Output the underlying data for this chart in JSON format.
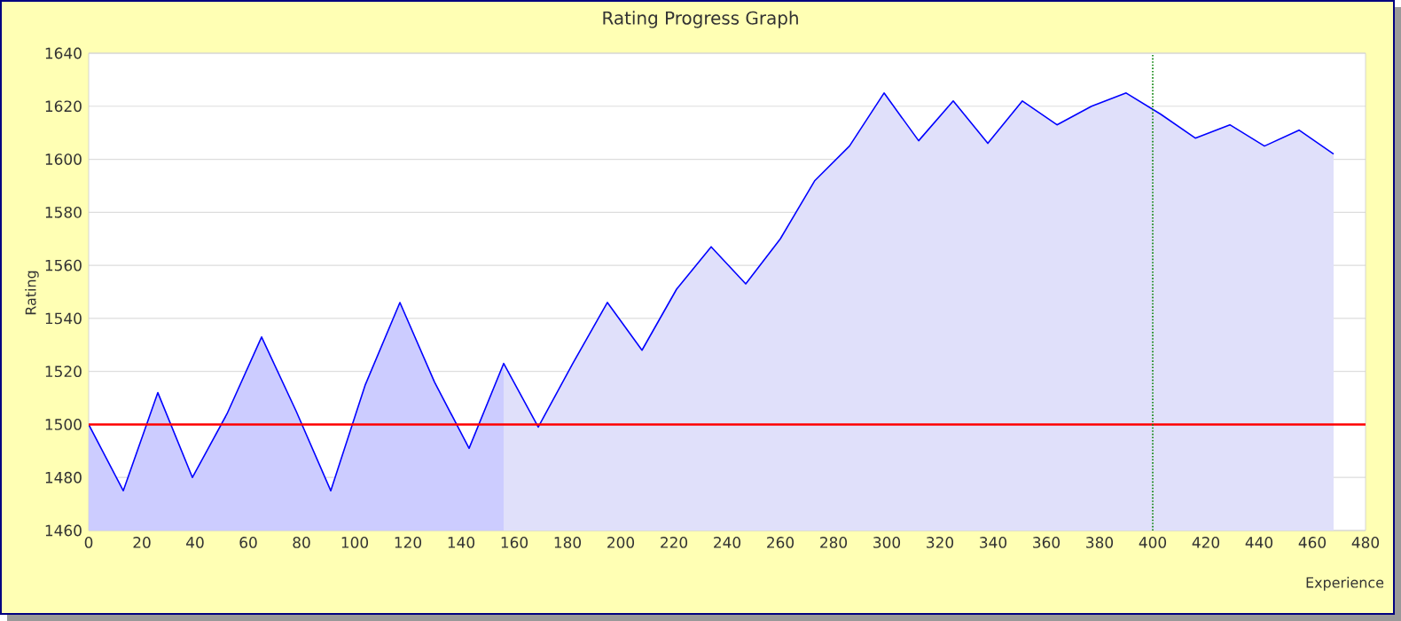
{
  "chart_data": {
    "type": "line",
    "title": "Rating Progress Graph",
    "xlabel": "Experience",
    "ylabel": "Rating",
    "xlim": [
      0,
      480
    ],
    "xticks": [
      0,
      20,
      40,
      60,
      80,
      100,
      120,
      140,
      160,
      180,
      200,
      220,
      240,
      260,
      280,
      300,
      320,
      340,
      360,
      380,
      400,
      420,
      440,
      460,
      480
    ],
    "ylim": [
      1460,
      1640
    ],
    "yticks": [
      1460,
      1480,
      1500,
      1520,
      1540,
      1560,
      1580,
      1600,
      1620,
      1640
    ],
    "grid": "y",
    "series": [
      {
        "type": "area",
        "color": "#ccccff",
        "x": [
          0,
          13,
          26,
          39,
          52,
          65,
          78,
          91,
          104,
          117,
          130,
          143,
          156
        ],
        "values": [
          1500,
          1475,
          1512,
          1480,
          1504,
          1533,
          1505,
          1475,
          1515,
          1546,
          1516,
          1491,
          1523
        ]
      },
      {
        "type": "area",
        "color": "#e0e0fa",
        "x": [
          156,
          169,
          182,
          195,
          208,
          221,
          234,
          247,
          260,
          273,
          286,
          299,
          312,
          325,
          338,
          351,
          364,
          377,
          390,
          403,
          416,
          429,
          442,
          455,
          468
        ],
        "values": [
          1523,
          1499,
          1523,
          1546,
          1528,
          1551,
          1567,
          1553,
          1570,
          1592,
          1605,
          1625,
          1607,
          1622,
          1606,
          1622,
          1613,
          1620,
          1625,
          1617,
          1608,
          1613,
          1605,
          1611,
          1602
        ]
      },
      {
        "color": "#0000ff",
        "x": [
          0,
          13,
          26,
          39,
          52,
          65,
          78,
          91,
          104,
          117,
          130,
          143,
          156,
          169,
          182,
          195,
          208,
          221,
          234,
          247,
          260,
          273,
          286,
          299,
          312,
          325,
          338,
          351,
          364,
          377,
          390,
          403,
          416,
          429,
          442,
          455,
          468
        ],
        "values": [
          1500,
          1475,
          1512,
          1480,
          1504,
          1533,
          1505,
          1475,
          1515,
          1546,
          1516,
          1491,
          1523,
          1499,
          1523,
          1546,
          1528,
          1551,
          1567,
          1553,
          1570,
          1592,
          1605,
          1625,
          1607,
          1622,
          1606,
          1622,
          1613,
          1620,
          1625,
          1617,
          1608,
          1613,
          1605,
          1611,
          1602
        ]
      }
    ],
    "ref_lines": [
      {
        "axis": "y",
        "value": 1500,
        "color": "#ff0000",
        "line_style": "solid"
      },
      {
        "axis": "x",
        "value": 400,
        "color": "#008000",
        "line_style": "dotted"
      }
    ]
  }
}
